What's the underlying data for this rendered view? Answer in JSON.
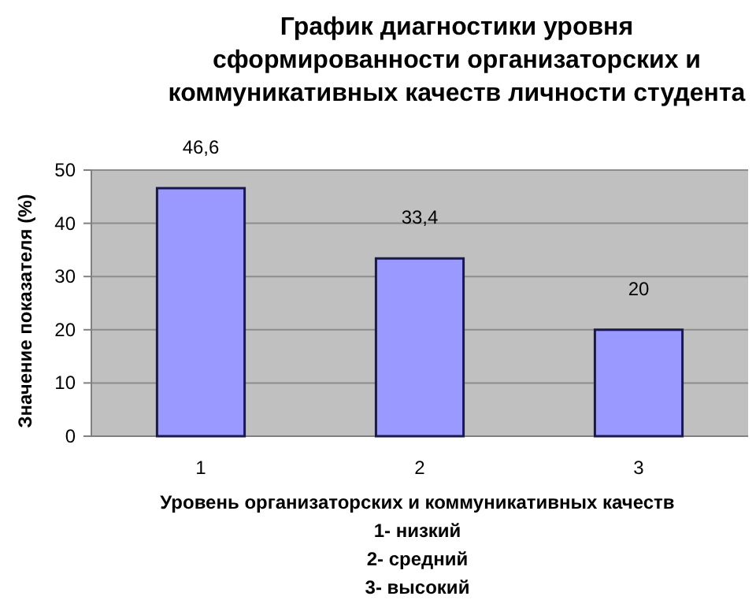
{
  "chart_data": {
    "type": "bar",
    "title": "График диагностики уровня\nсформированности организаторских и\nкоммуникативных качеств личности студента",
    "xlabel": "Уровень организаторских и коммуникативных качеств\n1- низкий\n2- средний\n3- высокий",
    "ylabel": "Значение показателя (%)",
    "categories": [
      "1",
      "2",
      "3"
    ],
    "values": [
      46.6,
      33.4,
      20
    ],
    "value_labels": [
      "46,6",
      "33,4",
      "20"
    ],
    "color": "#9999ff",
    "ylim": [
      0,
      50
    ],
    "yticks": [
      0,
      10,
      20,
      30,
      40,
      50
    ],
    "grid": "y"
  }
}
